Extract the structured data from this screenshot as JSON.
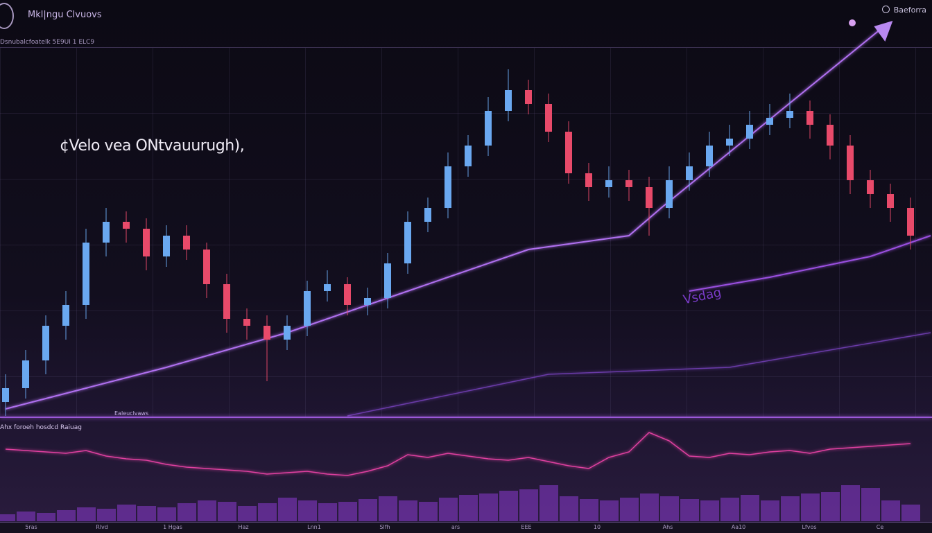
{
  "header": {
    "title": "Mkl|ngu Clvuovs",
    "subtitle": "Dsnubalcfoatelk 5E9UI 1 ELC9",
    "account_label": "Baeforra",
    "account_icon": "clock-icon"
  },
  "annotations": {
    "main": "¢Velo vea ONtvauurugh),",
    "overlay": "Vsdag",
    "panel_label": "Ealeuclvaws",
    "indicator_label": "Ahx foroeh hosdcd Raiuag"
  },
  "colors": {
    "up": "#6aa8f0",
    "down": "#e84a6a",
    "trend": "#b070f0",
    "indicator": "#e040a0",
    "volume": "#8a3ad0"
  },
  "chart_data": {
    "type": "candlestick",
    "ylim": [
      0,
      120
    ],
    "grid": true,
    "x_tick_labels": [
      "5ras",
      "Rlvd",
      "1 Hgas",
      "Haz",
      "Lnn1",
      "Slfh",
      "ars",
      "EEE",
      "10",
      "Ahs",
      "Aa10",
      "Lfvos",
      "Ce"
    ],
    "ohlc": [
      [
        4,
        12,
        0,
        8
      ],
      [
        8,
        19,
        5,
        16
      ],
      [
        16,
        29,
        12,
        26
      ],
      [
        26,
        36,
        22,
        32
      ],
      [
        32,
        54,
        28,
        50
      ],
      [
        50,
        60,
        46,
        56
      ],
      [
        56,
        59,
        50,
        54
      ],
      [
        54,
        57,
        42,
        46
      ],
      [
        46,
        55,
        43,
        52
      ],
      [
        52,
        55,
        45,
        48
      ],
      [
        48,
        50,
        34,
        38
      ],
      [
        38,
        41,
        24,
        28
      ],
      [
        28,
        31,
        22,
        26
      ],
      [
        26,
        29,
        10,
        22
      ],
      [
        22,
        29,
        19,
        26
      ],
      [
        26,
        39,
        23,
        36
      ],
      [
        36,
        42,
        33,
        38
      ],
      [
        38,
        40,
        29,
        32
      ],
      [
        32,
        37,
        29,
        34
      ],
      [
        34,
        47,
        31,
        44
      ],
      [
        44,
        59,
        41,
        56
      ],
      [
        56,
        63,
        53,
        60
      ],
      [
        60,
        76,
        57,
        72
      ],
      [
        72,
        81,
        69,
        78
      ],
      [
        78,
        92,
        75,
        88
      ],
      [
        88,
        100,
        85,
        94
      ],
      [
        94,
        97,
        87,
        90
      ],
      [
        90,
        93,
        79,
        82
      ],
      [
        82,
        85,
        67,
        70
      ],
      [
        70,
        73,
        62,
        66
      ],
      [
        66,
        72,
        63,
        68
      ],
      [
        68,
        71,
        62,
        66
      ],
      [
        66,
        69,
        52,
        60
      ],
      [
        60,
        72,
        57,
        68
      ],
      [
        68,
        76,
        65,
        72
      ],
      [
        72,
        82,
        69,
        78
      ],
      [
        78,
        84,
        75,
        80
      ],
      [
        80,
        88,
        77,
        84
      ],
      [
        84,
        90,
        81,
        86
      ],
      [
        86,
        93,
        83,
        88
      ],
      [
        88,
        91,
        80,
        84
      ],
      [
        84,
        87,
        74,
        78
      ],
      [
        78,
        81,
        64,
        68
      ],
      [
        68,
        71,
        60,
        64
      ],
      [
        64,
        67,
        56,
        60
      ],
      [
        60,
        63,
        48,
        52
      ]
    ],
    "moving_average": [
      [
        0,
        2
      ],
      [
        8,
        14
      ],
      [
        14,
        24
      ],
      [
        20,
        36
      ],
      [
        26,
        48
      ],
      [
        31,
        52
      ],
      [
        32.6,
        60
      ],
      [
        43.6,
        112
      ]
    ],
    "moving_average_2": [
      [
        34,
        36
      ],
      [
        38,
        40
      ],
      [
        43,
        46
      ],
      [
        46,
        52
      ]
    ],
    "moving_average_3": [
      [
        17,
        0
      ],
      [
        27,
        12
      ],
      [
        36,
        14
      ],
      [
        46,
        24
      ]
    ],
    "indicator": [
      72,
      70,
      68,
      66,
      70,
      62,
      58,
      56,
      50,
      46,
      44,
      42,
      40,
      36,
      38,
      40,
      36,
      34,
      40,
      48,
      64,
      60,
      66,
      62,
      58,
      56,
      60,
      54,
      48,
      44,
      60,
      68,
      96,
      84,
      62,
      60,
      66,
      64,
      68,
      70,
      66,
      72,
      74,
      76,
      78,
      80
    ],
    "volume": [
      10,
      14,
      12,
      16,
      20,
      18,
      24,
      22,
      20,
      26,
      30,
      28,
      22,
      26,
      34,
      30,
      26,
      28,
      32,
      36,
      30,
      28,
      34,
      38,
      40,
      44,
      46,
      52,
      36,
      32,
      30,
      34,
      40,
      36,
      32,
      30,
      34,
      38,
      30,
      36,
      40,
      42,
      52,
      48,
      30,
      24
    ]
  }
}
